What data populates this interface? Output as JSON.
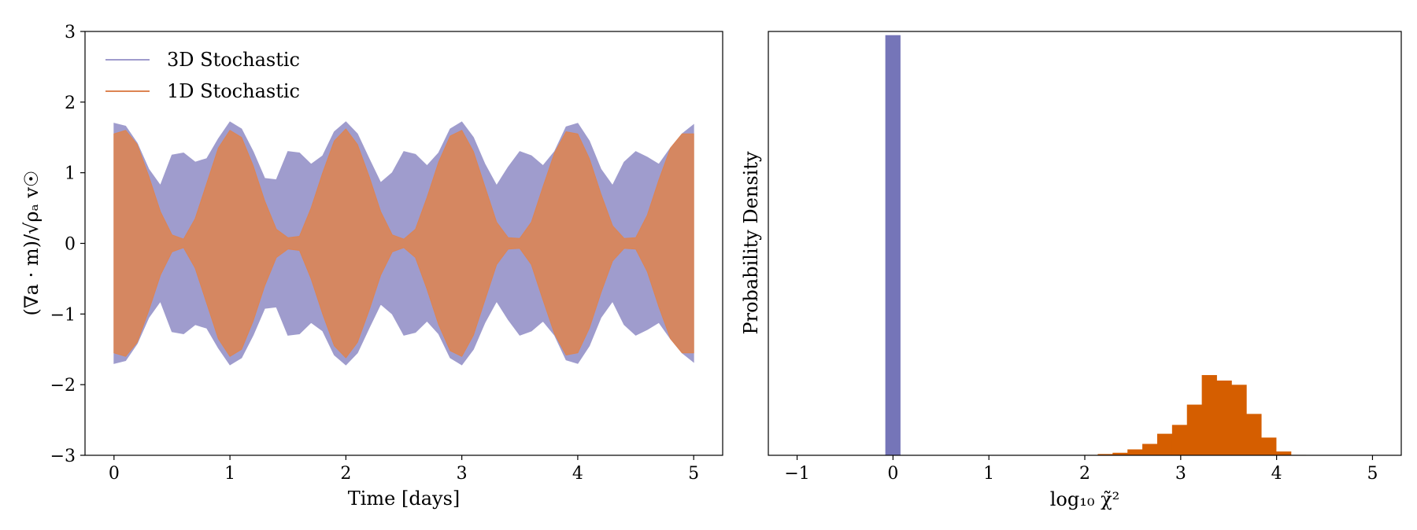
{
  "chart_data": [
    {
      "type": "area",
      "title": "",
      "xlabel": "Time [days]",
      "ylabel": "(∇a · m)/√ρₐ v☉",
      "xlim": [
        -0.25,
        5.25
      ],
      "ylim": [
        -3,
        3
      ],
      "xticks": [
        0,
        1,
        2,
        3,
        4,
        5
      ],
      "yticks": [
        -3,
        -2,
        -1,
        0,
        1,
        2,
        3
      ],
      "xtick_labels": [
        "0",
        "1",
        "2",
        "3",
        "4",
        "5"
      ],
      "ytick_labels": [
        "−3",
        "−2",
        "−1",
        "0",
        "1",
        "2",
        "3"
      ],
      "grid": false,
      "legend_position": "top-left",
      "series": [
        {
          "name": "3D Stochastic",
          "color": "#9f9ccd",
          "x": [
            0,
            0.1,
            0.2,
            0.3,
            0.4,
            0.5,
            0.6,
            0.7,
            0.8,
            0.9,
            1.0,
            1.1,
            1.2,
            1.3,
            1.4,
            1.5,
            1.6,
            1.7,
            1.8,
            1.9,
            2.0,
            2.1,
            2.2,
            2.3,
            2.4,
            2.5,
            2.6,
            2.7,
            2.8,
            2.9,
            3.0,
            3.1,
            3.2,
            3.3,
            3.4,
            3.5,
            3.6,
            3.7,
            3.8,
            3.9,
            4.0,
            4.1,
            4.2,
            4.3,
            4.4,
            4.5,
            4.6,
            4.7,
            4.8,
            4.9,
            5.0
          ],
          "envelope": [
            1.7,
            1.66,
            1.42,
            1.05,
            0.82,
            1.25,
            1.28,
            1.15,
            1.2,
            1.48,
            1.72,
            1.62,
            1.3,
            0.92,
            0.9,
            1.3,
            1.28,
            1.12,
            1.24,
            1.58,
            1.72,
            1.55,
            1.2,
            0.86,
            1.0,
            1.3,
            1.26,
            1.1,
            1.28,
            1.62,
            1.72,
            1.5,
            1.12,
            0.82,
            1.08,
            1.3,
            1.24,
            1.1,
            1.3,
            1.65,
            1.7,
            1.45,
            1.05,
            0.82,
            1.15,
            1.3,
            1.22,
            1.12,
            1.35,
            1.55,
            1.68
          ]
        },
        {
          "name": "1D Stochastic",
          "color": "#dd8452",
          "x": [
            0,
            0.1,
            0.2,
            0.3,
            0.4,
            0.5,
            0.6,
            0.7,
            0.8,
            0.9,
            1.0,
            1.1,
            1.2,
            1.3,
            1.4,
            1.5,
            1.6,
            1.7,
            1.8,
            1.9,
            2.0,
            2.1,
            2.2,
            2.3,
            2.4,
            2.5,
            2.6,
            2.7,
            2.8,
            2.9,
            3.0,
            3.1,
            3.2,
            3.3,
            3.4,
            3.5,
            3.6,
            3.7,
            3.8,
            3.9,
            4.0,
            4.1,
            4.2,
            4.3,
            4.4,
            4.5,
            4.6,
            4.7,
            4.8,
            4.9,
            5.0
          ],
          "envelope": [
            1.55,
            1.6,
            1.4,
            0.95,
            0.45,
            0.12,
            0.06,
            0.35,
            0.85,
            1.35,
            1.6,
            1.5,
            1.1,
            0.6,
            0.2,
            0.08,
            0.1,
            0.5,
            1.0,
            1.45,
            1.62,
            1.4,
            0.95,
            0.45,
            0.12,
            0.06,
            0.2,
            0.65,
            1.15,
            1.52,
            1.6,
            1.3,
            0.8,
            0.3,
            0.08,
            0.07,
            0.3,
            0.8,
            1.28,
            1.58,
            1.55,
            1.2,
            0.7,
            0.25,
            0.07,
            0.08,
            0.4,
            0.9,
            1.35,
            1.55,
            1.55
          ]
        }
      ]
    },
    {
      "type": "bar",
      "title": "",
      "xlabel": "log₁₀ χ̃²",
      "ylabel": "Probability Density",
      "xlim": [
        -1.3,
        5.3
      ],
      "ylim": [
        0,
        1
      ],
      "xticks": [
        -1,
        0,
        1,
        2,
        3,
        4,
        5
      ],
      "xtick_labels": [
        "−1",
        "0",
        "1",
        "2",
        "3",
        "4",
        "5"
      ],
      "yticks": [],
      "grid": false,
      "bin_width": 0.155,
      "series": [
        {
          "name": "3D Stochastic",
          "color": "#7575b8",
          "bin_edges": [
            -0.08,
            0.075
          ],
          "heights": [
            0.995
          ]
        },
        {
          "name": "1D Stochastic",
          "color": "#d55e00",
          "bin_edges": [
            1.98,
            2.135,
            2.29,
            2.445,
            2.6,
            2.755,
            2.91,
            3.065,
            3.22,
            3.375,
            3.53,
            3.685,
            3.84,
            3.995,
            4.15,
            4.305
          ],
          "heights": [
            0.001,
            0.003,
            0.006,
            0.014,
            0.027,
            0.051,
            0.072,
            0.12,
            0.19,
            0.177,
            0.167,
            0.098,
            0.042,
            0.009,
            0.001
          ]
        }
      ]
    }
  ]
}
